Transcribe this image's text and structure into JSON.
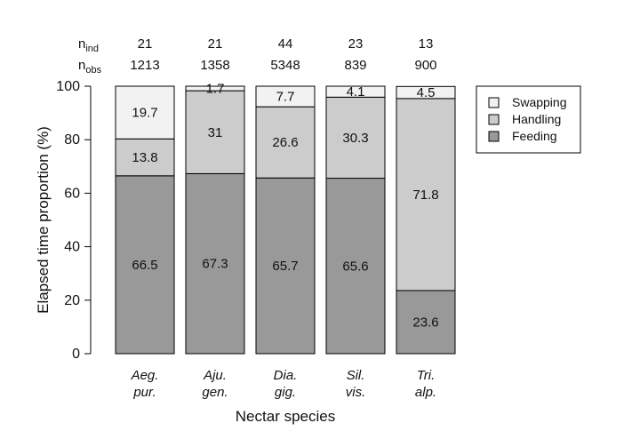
{
  "chart_data": {
    "type": "bar",
    "stacked": true,
    "xlabel": "Nectar species",
    "ylabel": "Elapsed time proportion (%)",
    "ylim": [
      0,
      100
    ],
    "yticks": [
      0,
      20,
      40,
      60,
      80,
      100
    ],
    "categories": [
      [
        "Aeg.",
        "pur."
      ],
      [
        "Aju.",
        "gen."
      ],
      [
        "Dia.",
        "gig."
      ],
      [
        "Sil.",
        "vis."
      ],
      [
        "Tri.",
        "alp."
      ]
    ],
    "series": [
      {
        "name": "Feeding",
        "color": "#999999",
        "values": [
          66.5,
          67.3,
          65.7,
          65.6,
          23.6
        ]
      },
      {
        "name": "Handling",
        "color": "#cccccc",
        "values": [
          13.8,
          31,
          26.6,
          30.3,
          71.8
        ]
      },
      {
        "name": "Swapping",
        "color": "#f2f2f2",
        "values": [
          19.7,
          1.7,
          7.7,
          4.1,
          4.5
        ]
      }
    ],
    "header_rows": [
      {
        "label": "n",
        "sub": "ind",
        "values": [
          "21",
          "21",
          "44",
          "23",
          "13"
        ]
      },
      {
        "label": "n",
        "sub": "obs",
        "values": [
          "1213",
          "1358",
          "5348",
          "839",
          "900"
        ]
      }
    ],
    "legend": {
      "placement": "top-right",
      "order": [
        "Swapping",
        "Handling",
        "Feeding"
      ]
    },
    "grid": false
  }
}
